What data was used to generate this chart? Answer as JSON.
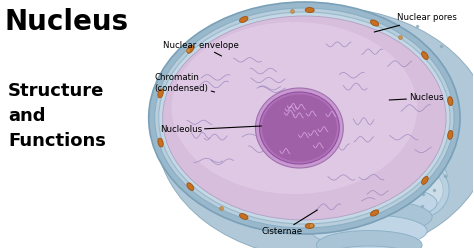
{
  "title_line1": "Nucleus",
  "title_line2": "Structure\nand\nFunctions",
  "bg_color": "#ffffff",
  "labels": {
    "nuclear_envelope": "Nuclear envelope",
    "chromatin": "Chromatin\n(condensed)",
    "nucleolus": "Nucleolus",
    "nuclear_pores": "Nuclear pores",
    "nucleus": "Nucleus",
    "cisternae": "Cisternae"
  },
  "colors": {
    "er_outer1": "#adc8d8",
    "er_outer2": "#c2d8e5",
    "er_stripe": "#b8d2e2",
    "envelope_outer": "#9ab8cc",
    "envelope_ring": "#b5cdd8",
    "envelope_inner": "#c8dae5",
    "nucleoplasm": "#d4b8d8",
    "nucleoplasm_light": "#e0cce5",
    "nucleolus_outer": "#c090c8",
    "nucleolus_inner": "#a060a8",
    "nucleolus_dark": "#883898",
    "chromatin_lines": "#9080b8",
    "pore_fill": "#c87020",
    "pore_edge": "#a05010",
    "dot_orange": "#d09040",
    "dot_small": "#b8c8d0",
    "text_color": "#000000"
  },
  "figsize": [
    4.74,
    2.48
  ],
  "dpi": 100
}
